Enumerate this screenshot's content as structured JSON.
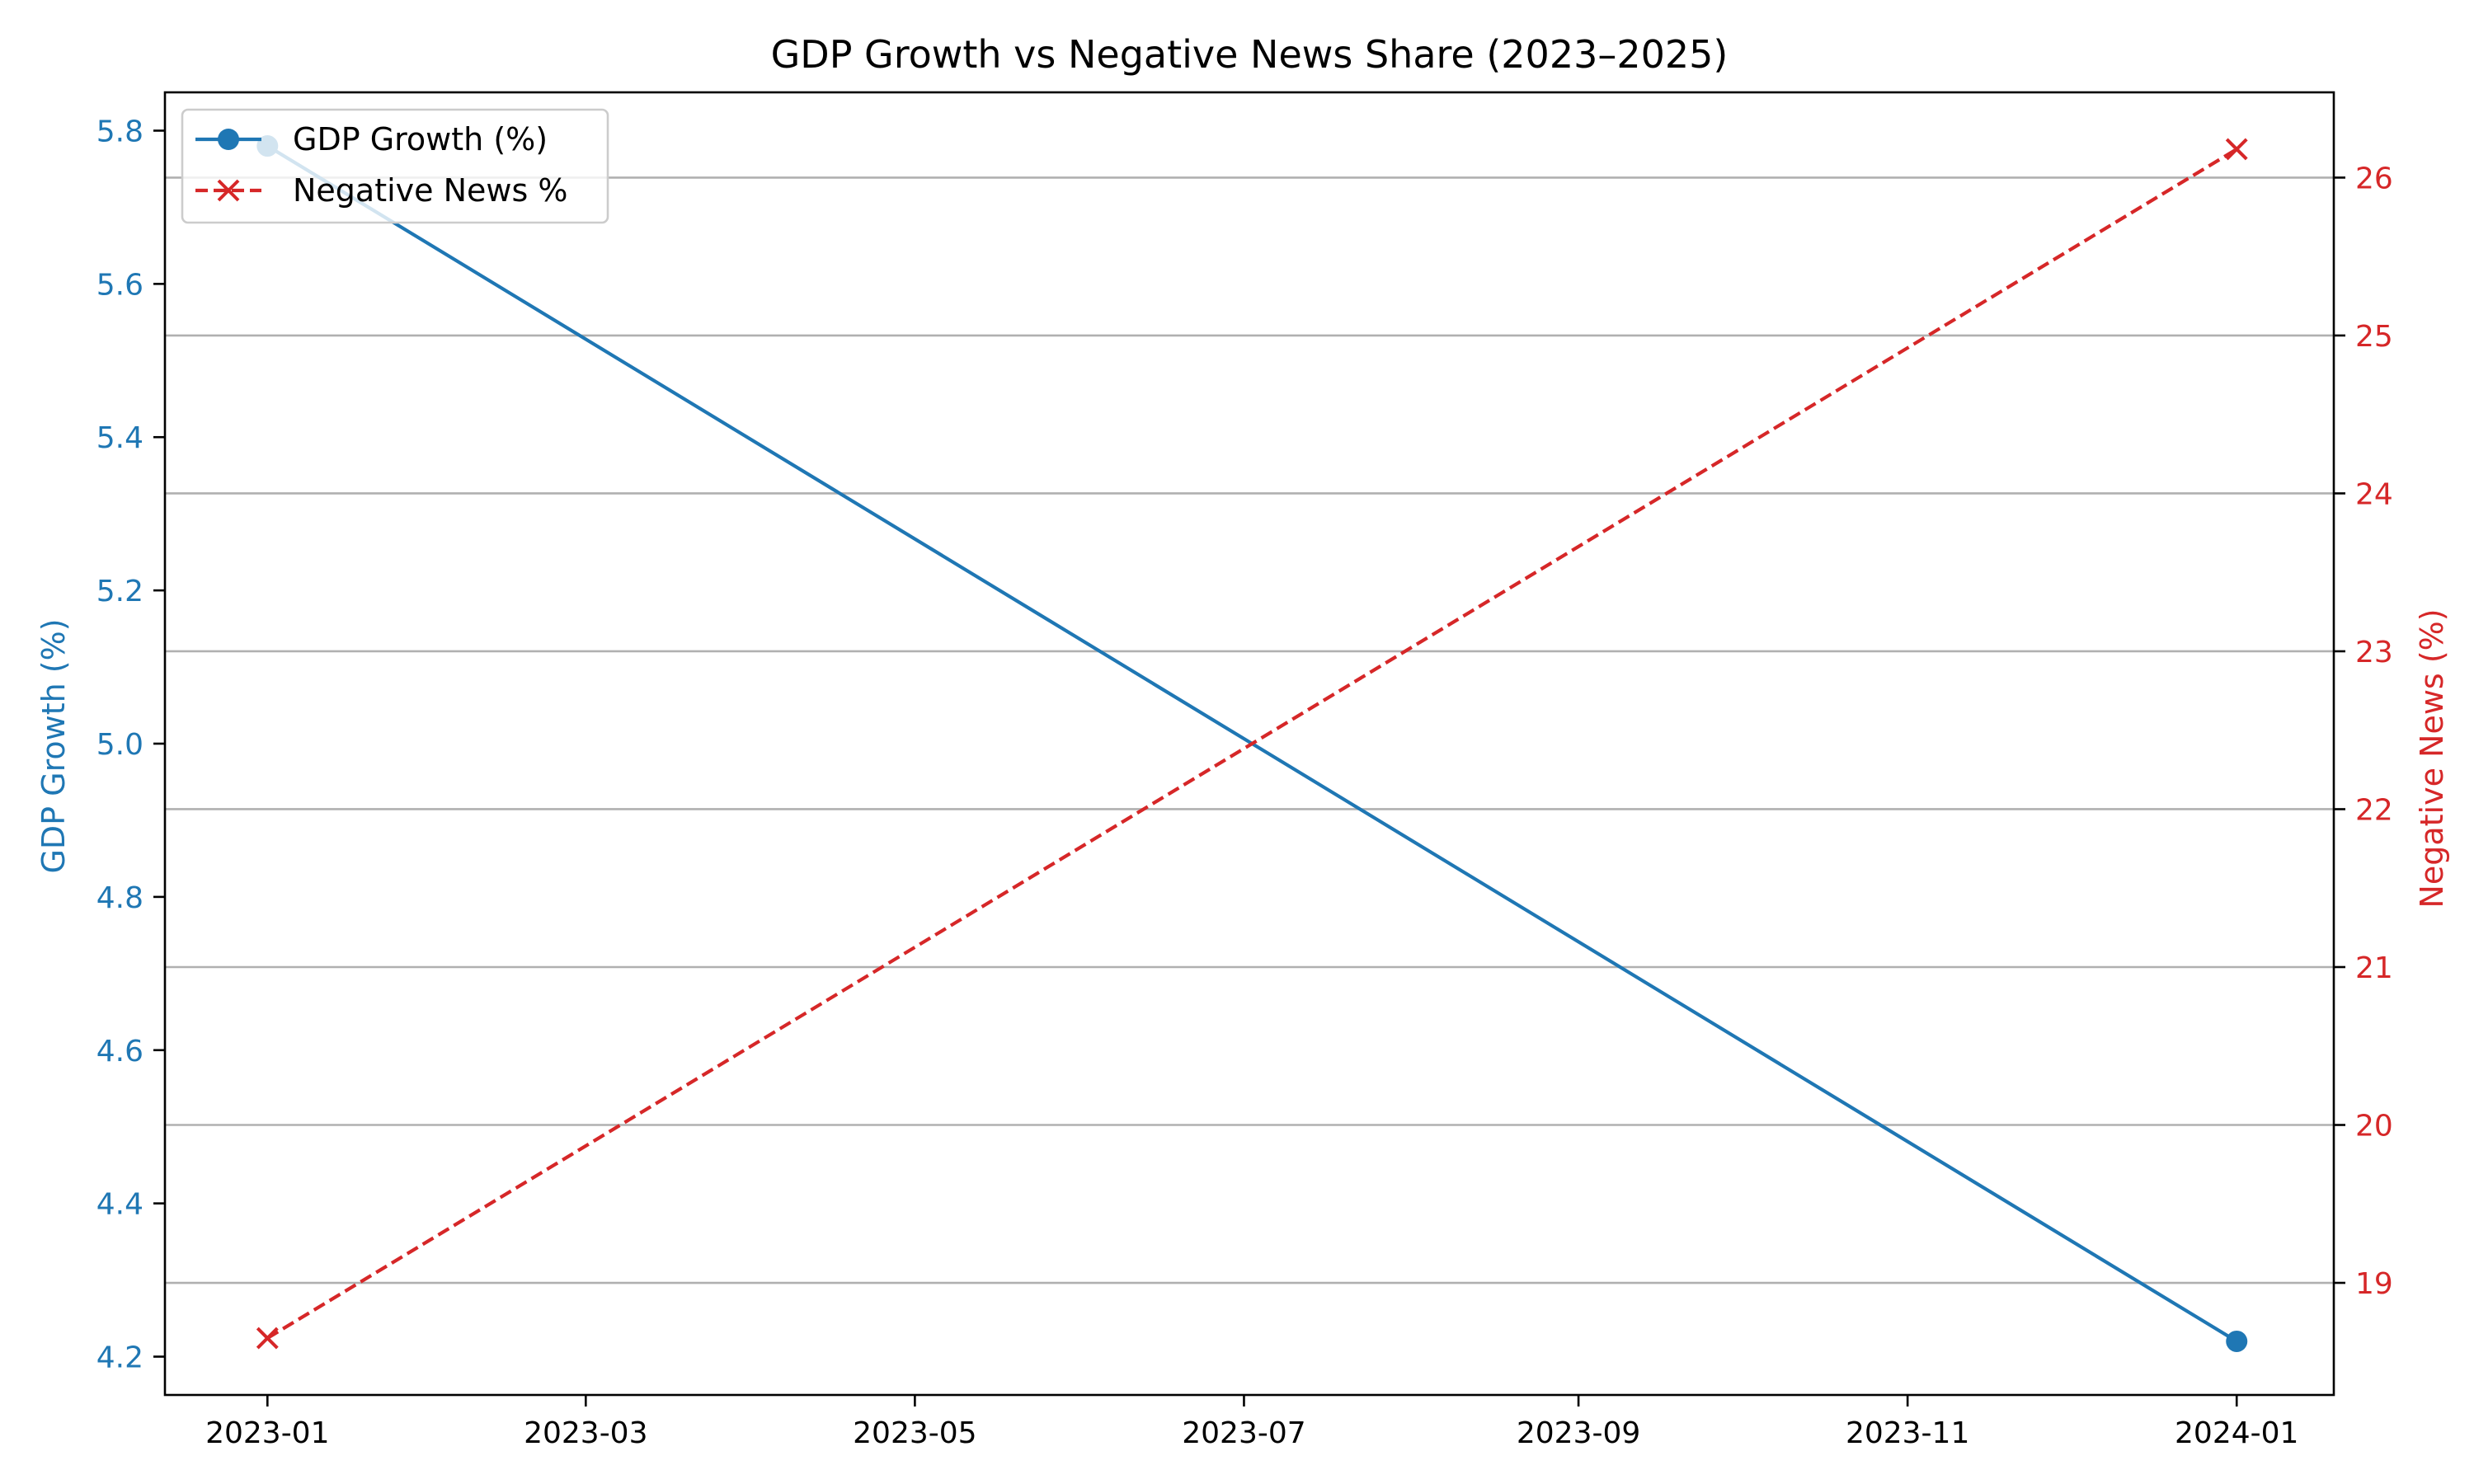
{
  "chart_data": {
    "type": "line",
    "title": "GDP Growth vs Negative News Share (2023–2025)",
    "xlabel": "",
    "x_type": "date",
    "x_ticks": [
      "2023-01",
      "2023-03",
      "2023-05",
      "2023-07",
      "2023-09",
      "2023-11",
      "2024-01"
    ],
    "xlim": [
      "2022-12-13",
      "2024-01-19"
    ],
    "grid": "horizontal",
    "legend_position": "upper left",
    "left_axis": {
      "label": "GDP Growth (%)",
      "color": "#1f77b4",
      "ylim": [
        4.15,
        5.85
      ],
      "ticks": [
        4.2,
        4.4,
        4.6,
        4.8,
        5.0,
        5.2,
        5.4,
        5.6,
        5.8
      ]
    },
    "right_axis": {
      "label": "Negative News (%)",
      "color": "#d62728",
      "ylim": [
        18.29,
        26.54
      ],
      "ticks": [
        19,
        20,
        21,
        22,
        23,
        24,
        25,
        26
      ]
    },
    "series": [
      {
        "name": "GDP Growth (%)",
        "axis": "left",
        "color": "#1f77b4",
        "line_style": "solid",
        "marker": "circle",
        "x": [
          "2023-01-01",
          "2024-01-01"
        ],
        "y": [
          5.78,
          4.22
        ]
      },
      {
        "name": "Negative News %",
        "axis": "right",
        "color": "#d62728",
        "line_style": "dashed",
        "marker": "x",
        "x": [
          "2023-01-01",
          "2024-01-01"
        ],
        "y": [
          18.65,
          26.18
        ]
      }
    ]
  }
}
